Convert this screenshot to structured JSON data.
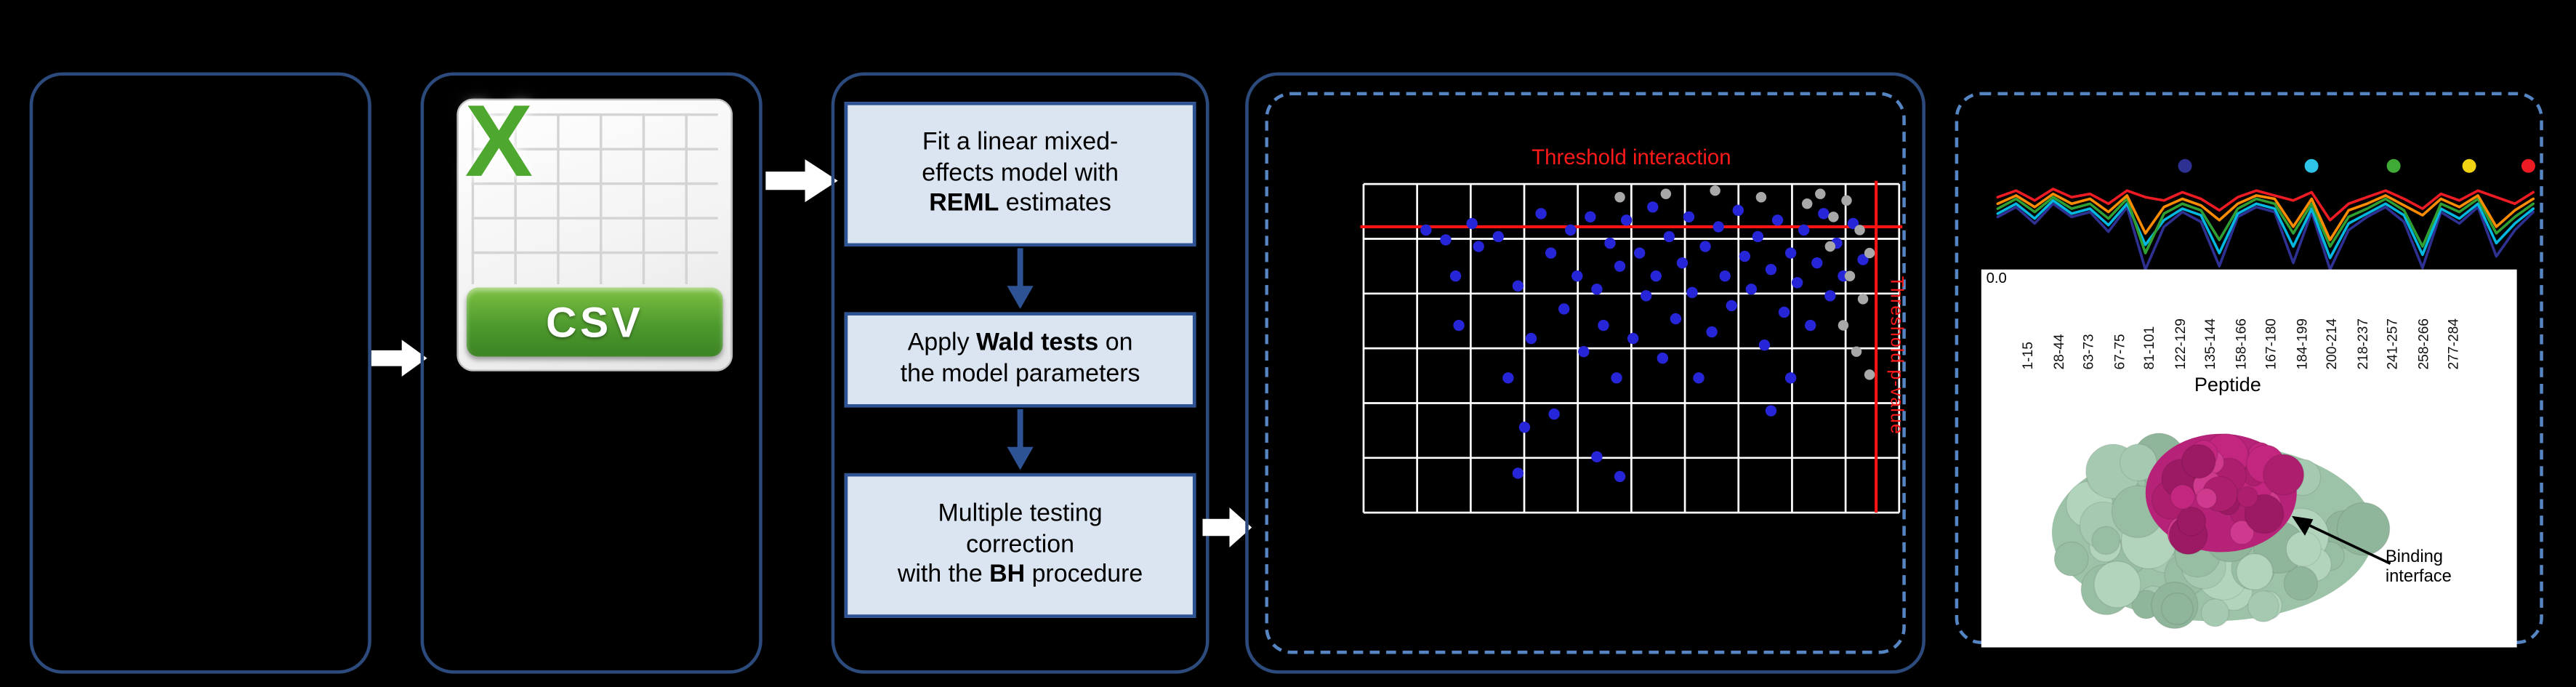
{
  "csv_icon": {
    "letter": "X",
    "label": "CSV"
  },
  "flow": {
    "step1": {
      "pre": "Fit a linear mixed-\neffects model with\n",
      "bold": "REML",
      "post": " estimates"
    },
    "step2": {
      "pre": "Apply ",
      "bold": "Wald tests",
      "post": " on\nthe model parameters"
    },
    "step3": {
      "pre": "Multiple testing\ncorrection\nwith the ",
      "bold": "BH",
      "post": " procedure"
    }
  },
  "volcano": {
    "title": "Threshold interaction",
    "side_label": "Threshold p-value",
    "colors": {
      "points": "#2626d8",
      "secondary_points": "#a8a8a8",
      "threshold": "#ff1313",
      "grid": "#ffffff"
    },
    "threshold_y": 28,
    "threshold_x": 314,
    "blue_points": [
      [
        40,
        30
      ],
      [
        52,
        36
      ],
      [
        58,
        58
      ],
      [
        60,
        88
      ],
      [
        68,
        26
      ],
      [
        72,
        40
      ],
      [
        84,
        34
      ],
      [
        90,
        120
      ],
      [
        96,
        64
      ],
      [
        96,
        178
      ],
      [
        100,
        150
      ],
      [
        104,
        96
      ],
      [
        110,
        20
      ],
      [
        116,
        44
      ],
      [
        118,
        142
      ],
      [
        124,
        78
      ],
      [
        128,
        30
      ],
      [
        132,
        58
      ],
      [
        136,
        104
      ],
      [
        140,
        22
      ],
      [
        144,
        66
      ],
      [
        144,
        168
      ],
      [
        148,
        88
      ],
      [
        152,
        38
      ],
      [
        156,
        120
      ],
      [
        158,
        52
      ],
      [
        158,
        180
      ],
      [
        162,
        24
      ],
      [
        166,
        96
      ],
      [
        170,
        44
      ],
      [
        174,
        70
      ],
      [
        178,
        16
      ],
      [
        180,
        58
      ],
      [
        184,
        108
      ],
      [
        188,
        34
      ],
      [
        192,
        84
      ],
      [
        196,
        50
      ],
      [
        200,
        22
      ],
      [
        202,
        68
      ],
      [
        206,
        120
      ],
      [
        210,
        40
      ],
      [
        214,
        92
      ],
      [
        218,
        28
      ],
      [
        222,
        58
      ],
      [
        226,
        76
      ],
      [
        230,
        18
      ],
      [
        234,
        46
      ],
      [
        238,
        66
      ],
      [
        242,
        34
      ],
      [
        246,
        100
      ],
      [
        250,
        54
      ],
      [
        250,
        140
      ],
      [
        254,
        24
      ],
      [
        258,
        80
      ],
      [
        262,
        44
      ],
      [
        262,
        120
      ],
      [
        266,
        62
      ],
      [
        270,
        30
      ],
      [
        274,
        88
      ],
      [
        278,
        50
      ],
      [
        282,
        20
      ],
      [
        286,
        70
      ],
      [
        290,
        38
      ],
      [
        294,
        58
      ],
      [
        300,
        26
      ],
      [
        306,
        48
      ]
    ],
    "gray_points": [
      [
        272,
        14
      ],
      [
        280,
        8
      ],
      [
        288,
        22
      ],
      [
        296,
        12
      ],
      [
        304,
        30
      ],
      [
        310,
        44
      ],
      [
        298,
        58
      ],
      [
        306,
        72
      ],
      [
        294,
        88
      ],
      [
        302,
        104
      ],
      [
        310,
        118
      ],
      [
        286,
        40
      ],
      [
        186,
        8
      ],
      [
        216,
        6
      ],
      [
        244,
        10
      ],
      [
        158,
        10
      ]
    ]
  },
  "profile_plot": {
    "legend_dot_colors": [
      "#2e3192",
      "#2ec4e8",
      "#3faa35",
      "#f2d313",
      "#ed1c24"
    ],
    "y_axis_tick": "0.0",
    "x_axis_label": "Peptide",
    "peptide_labels": [
      "1-15",
      "28-44",
      "63-73",
      "67-75",
      "81-101",
      "122-129",
      "135-144",
      "158-166",
      "167-180",
      "184-199",
      "200-214",
      "218-237",
      "241-257",
      "258-266",
      "277-284"
    ],
    "series": [
      {
        "name": "blue",
        "color": "#2e3192",
        "y": [
          38,
          32,
          42,
          30,
          38,
          35,
          47,
          32,
          70,
          44,
          35,
          41,
          68,
          38,
          32,
          35,
          66,
          35,
          70,
          46,
          38,
          32,
          41,
          69,
          35,
          42,
          32,
          62,
          46,
          35
        ]
      },
      {
        "name": "cyan",
        "color": "#00b7e0",
        "y": [
          36,
          30,
          39,
          28,
          36,
          33,
          43,
          30,
          55,
          40,
          33,
          37,
          60,
          36,
          30,
          33,
          56,
          33,
          63,
          42,
          36,
          30,
          37,
          61,
          33,
          39,
          30,
          54,
          42,
          33
        ]
      },
      {
        "name": "green",
        "color": "#2f9e33",
        "y": [
          33,
          27,
          35,
          26,
          33,
          30,
          39,
          27,
          60,
          36,
          30,
          34,
          52,
          33,
          27,
          30,
          48,
          30,
          56,
          38,
          33,
          27,
          34,
          56,
          30,
          35,
          27,
          48,
          38,
          30
        ]
      },
      {
        "name": "orange",
        "color": "#ff8c00",
        "y": [
          30,
          25,
          32,
          24,
          30,
          27,
          35,
          25,
          48,
          32,
          27,
          31,
          40,
          30,
          25,
          27,
          44,
          27,
          52,
          34,
          30,
          25,
          31,
          37,
          27,
          32,
          25,
          44,
          34,
          27
        ]
      },
      {
        "name": "red",
        "color": "#ed1c24",
        "y": [
          26,
          22,
          28,
          21,
          26,
          24,
          30,
          22,
          26,
          28,
          23,
          27,
          34,
          26,
          22,
          25,
          28,
          23,
          40,
          30,
          26,
          22,
          27,
          33,
          24,
          28,
          22,
          26,
          30,
          23
        ]
      }
    ]
  },
  "protein_panel": {
    "annotation": "Binding interface"
  }
}
